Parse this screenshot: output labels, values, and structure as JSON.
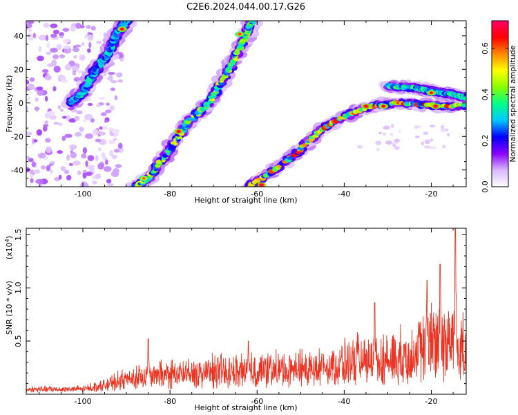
{
  "title": "C2E6.2024.044.00.17.G26",
  "chart_data": [
    {
      "type": "heatmap",
      "xlabel": "Height of straight line (km)",
      "ylabel": "Frequency (Hz)",
      "xlim": [
        -113,
        -12
      ],
      "ylim": [
        -50,
        49
      ],
      "x_ticks": [
        -100,
        -80,
        -60,
        -40,
        -20
      ],
      "x_tick_labels": [
        "-100",
        "-80",
        "-60",
        "-40",
        "-20"
      ],
      "y_ticks": [
        40,
        20,
        0,
        -20,
        -40
      ],
      "y_tick_labels": [
        "40",
        "20",
        "0",
        "-20",
        "-40"
      ],
      "colorbar": {
        "label": "Normalized spectral amplitude",
        "range": [
          0.0,
          0.72
        ],
        "ticks": [
          0.0,
          0.2,
          0.4,
          0.6
        ],
        "tick_labels": [
          "0.0",
          "0.2",
          "0.4",
          "0.6"
        ],
        "colors": [
          "#ffffff",
          "#d9b8ff",
          "#8a00ff",
          "#0000ff",
          "#00c8ff",
          "#00ff88",
          "#88ff00",
          "#ffff00",
          "#ff8800",
          "#ff0000",
          "#ff0066"
        ]
      },
      "ridges": [
        {
          "points": [
            [
              -103,
              0
            ],
            [
              -100,
              6
            ],
            [
              -97,
              20
            ],
            [
              -94,
              30
            ],
            [
              -92,
              42
            ],
            [
              -90,
              49
            ]
          ],
          "peak": 0.4
        },
        {
          "points": [
            [
              -88,
              -50
            ],
            [
              -85,
              -45
            ],
            [
              -80,
              -28
            ],
            [
              -76,
              -12
            ],
            [
              -71,
              0
            ],
            [
              -66,
              22
            ],
            [
              -63,
              38
            ],
            [
              -61,
              49
            ]
          ],
          "peak": 0.55
        },
        {
          "points": [
            [
              -62,
              -50
            ],
            [
              -57,
              -42
            ],
            [
              -51,
              -30
            ],
            [
              -46,
              -17
            ],
            [
              -40,
              -8
            ],
            [
              -34,
              -2
            ],
            [
              -28,
              0
            ],
            [
              -22,
              -1
            ],
            [
              -16,
              -2
            ],
            [
              -12,
              -1
            ]
          ],
          "peak": 0.7
        },
        {
          "points": [
            [
              -30,
              10
            ],
            [
              -24,
              9
            ],
            [
              -20,
              7
            ],
            [
              -15,
              5
            ],
            [
              -12,
              3
            ]
          ],
          "peak": 0.45
        }
      ],
      "hotspots": [
        {
          "x": -91,
          "y": 44,
          "value": 0.66
        },
        {
          "x": -78,
          "y": -17,
          "value": 0.68
        },
        {
          "x": -86,
          "y": -45,
          "value": 0.6
        },
        {
          "x": -64,
          "y": 41,
          "value": 0.62
        },
        {
          "x": -59,
          "y": -49,
          "value": 0.72
        },
        {
          "x": -35,
          "y": -2,
          "value": 0.7
        },
        {
          "x": -31,
          "y": -2,
          "value": 0.66
        },
        {
          "x": -20,
          "y": 6,
          "value": 0.64
        },
        {
          "x": -19,
          "y": -2,
          "value": 0.7
        }
      ]
    },
    {
      "type": "line",
      "xlabel": "Height of straight line (km)",
      "ylabel": "SNR (10 * v/v)",
      "y_multiplier_label": "(x10",
      "y_multiplier_exponent": "4",
      "y_multiplier_close": ")",
      "xlim": [
        -113,
        -12
      ],
      "ylim": [
        0,
        1.56
      ],
      "x_ticks": [
        -100,
        -80,
        -60,
        -40,
        -20
      ],
      "x_tick_labels": [
        "-100",
        "-80",
        "-60",
        "-40",
        "-20"
      ],
      "y_ticks": [
        0.5,
        1.0,
        1.5
      ],
      "y_tick_labels": [
        "0.5",
        "1.0",
        "1.5"
      ],
      "series": [
        {
          "color": "#ee3322",
          "envelope": [
            [
              -113,
              0.07
            ],
            [
              -100,
              0.08
            ],
            [
              -95,
              0.14
            ],
            [
              -90,
              0.25
            ],
            [
              -85,
              0.3
            ],
            [
              -80,
              0.33
            ],
            [
              -70,
              0.38
            ],
            [
              -60,
              0.4
            ],
            [
              -50,
              0.42
            ],
            [
              -42,
              0.5
            ],
            [
              -38,
              0.55
            ],
            [
              -30,
              0.6
            ],
            [
              -25,
              0.65
            ],
            [
              -20,
              0.9
            ],
            [
              -15,
              0.95
            ],
            [
              -12,
              0.7
            ]
          ],
          "baseline": [
            [
              -113,
              0.05
            ],
            [
              -100,
              0.05
            ],
            [
              -95,
              0.08
            ],
            [
              -90,
              0.12
            ],
            [
              -80,
              0.15
            ],
            [
              -60,
              0.17
            ],
            [
              -45,
              0.2
            ],
            [
              -35,
              0.22
            ],
            [
              -25,
              0.25
            ],
            [
              -20,
              0.3
            ],
            [
              -12,
              0.3
            ]
          ],
          "peaks": [
            [
              -85,
              0.52
            ],
            [
              -62,
              0.5
            ],
            [
              -33,
              0.86
            ],
            [
              -21,
              1.07
            ],
            [
              -18,
              1.22
            ],
            [
              -14.5,
              1.56
            ]
          ]
        }
      ]
    }
  ]
}
